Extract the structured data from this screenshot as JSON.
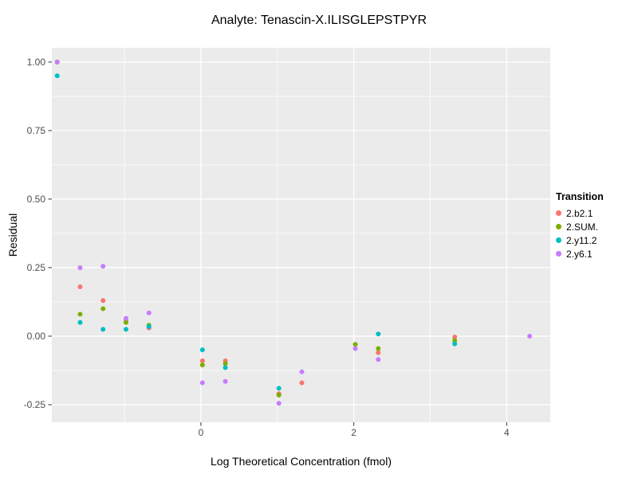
{
  "chart_data": {
    "type": "scatter",
    "title": "Analyte: Tenascin-X.ILISGLEPSTPYR",
    "xlabel": "Log Theoretical Concentration (fmol)",
    "ylabel": "Residual",
    "xlim": [
      -1.95,
      4.57
    ],
    "ylim": [
      -0.314,
      1.052
    ],
    "x_tick_values": [
      0,
      2,
      4
    ],
    "x_tick_labels": [
      "0",
      "2",
      "4"
    ],
    "x_minor_ticks": [
      -1,
      1,
      3
    ],
    "y_tick_values": [
      1.0,
      0.75,
      0.5,
      0.25,
      0.0,
      -0.25
    ],
    "y_tick_labels": [
      "1.00",
      "0.75",
      "0.50",
      "0.25",
      "0.00",
      "-0.25"
    ],
    "y_minor_ticks": [
      0.875,
      0.625,
      0.375,
      0.125,
      -0.125
    ],
    "legend_title": "Transition",
    "legend_position": "right",
    "grid": true,
    "panel_background": "#EBEBEB",
    "grid_color": "#FFFFFF",
    "tick_label_color": "#4D4D4D",
    "tick_mark_color": "#333333",
    "point_radius": 3,
    "series": [
      {
        "name": "2.b2.1",
        "color": "#F8766D",
        "points": [
          [
            -1.88,
            1.0
          ],
          [
            -1.58,
            0.18
          ],
          [
            -1.28,
            0.13
          ],
          [
            -0.98,
            0.055
          ],
          [
            -0.68,
            0.03
          ],
          [
            0.02,
            -0.09
          ],
          [
            0.32,
            -0.09
          ],
          [
            1.02,
            -0.21
          ],
          [
            1.32,
            -0.17
          ],
          [
            2.32,
            -0.06
          ],
          [
            3.32,
            -0.003
          ]
        ]
      },
      {
        "name": "2.SUM.",
        "color": "#7CAE00",
        "points": [
          [
            -1.88,
            1.0
          ],
          [
            -1.58,
            0.08
          ],
          [
            -1.28,
            0.1
          ],
          [
            -0.98,
            0.05
          ],
          [
            -0.68,
            0.04
          ],
          [
            0.02,
            -0.105
          ],
          [
            0.32,
            -0.1
          ],
          [
            1.02,
            -0.215
          ],
          [
            2.02,
            -0.03
          ],
          [
            2.32,
            -0.045
          ],
          [
            3.32,
            -0.016
          ]
        ]
      },
      {
        "name": "2.y11.2",
        "color": "#00BFC4",
        "points": [
          [
            -1.88,
            0.95
          ],
          [
            -1.58,
            0.05
          ],
          [
            -1.28,
            0.025
          ],
          [
            -0.98,
            0.025
          ],
          [
            -0.68,
            0.035
          ],
          [
            0.02,
            -0.05
          ],
          [
            0.32,
            -0.115
          ],
          [
            1.02,
            -0.19
          ],
          [
            2.32,
            0.008
          ],
          [
            3.32,
            -0.028
          ]
        ]
      },
      {
        "name": "2.y6.1",
        "color": "#C77CFF",
        "points": [
          [
            -1.88,
            1.0
          ],
          [
            -1.58,
            0.25
          ],
          [
            -1.28,
            0.255
          ],
          [
            -0.98,
            0.065
          ],
          [
            -0.68,
            0.085
          ],
          [
            0.02,
            -0.17
          ],
          [
            0.32,
            -0.165
          ],
          [
            1.02,
            -0.245
          ],
          [
            1.32,
            -0.13
          ],
          [
            2.02,
            -0.045
          ],
          [
            2.32,
            -0.085
          ],
          [
            4.3,
            0.0
          ]
        ]
      }
    ]
  }
}
